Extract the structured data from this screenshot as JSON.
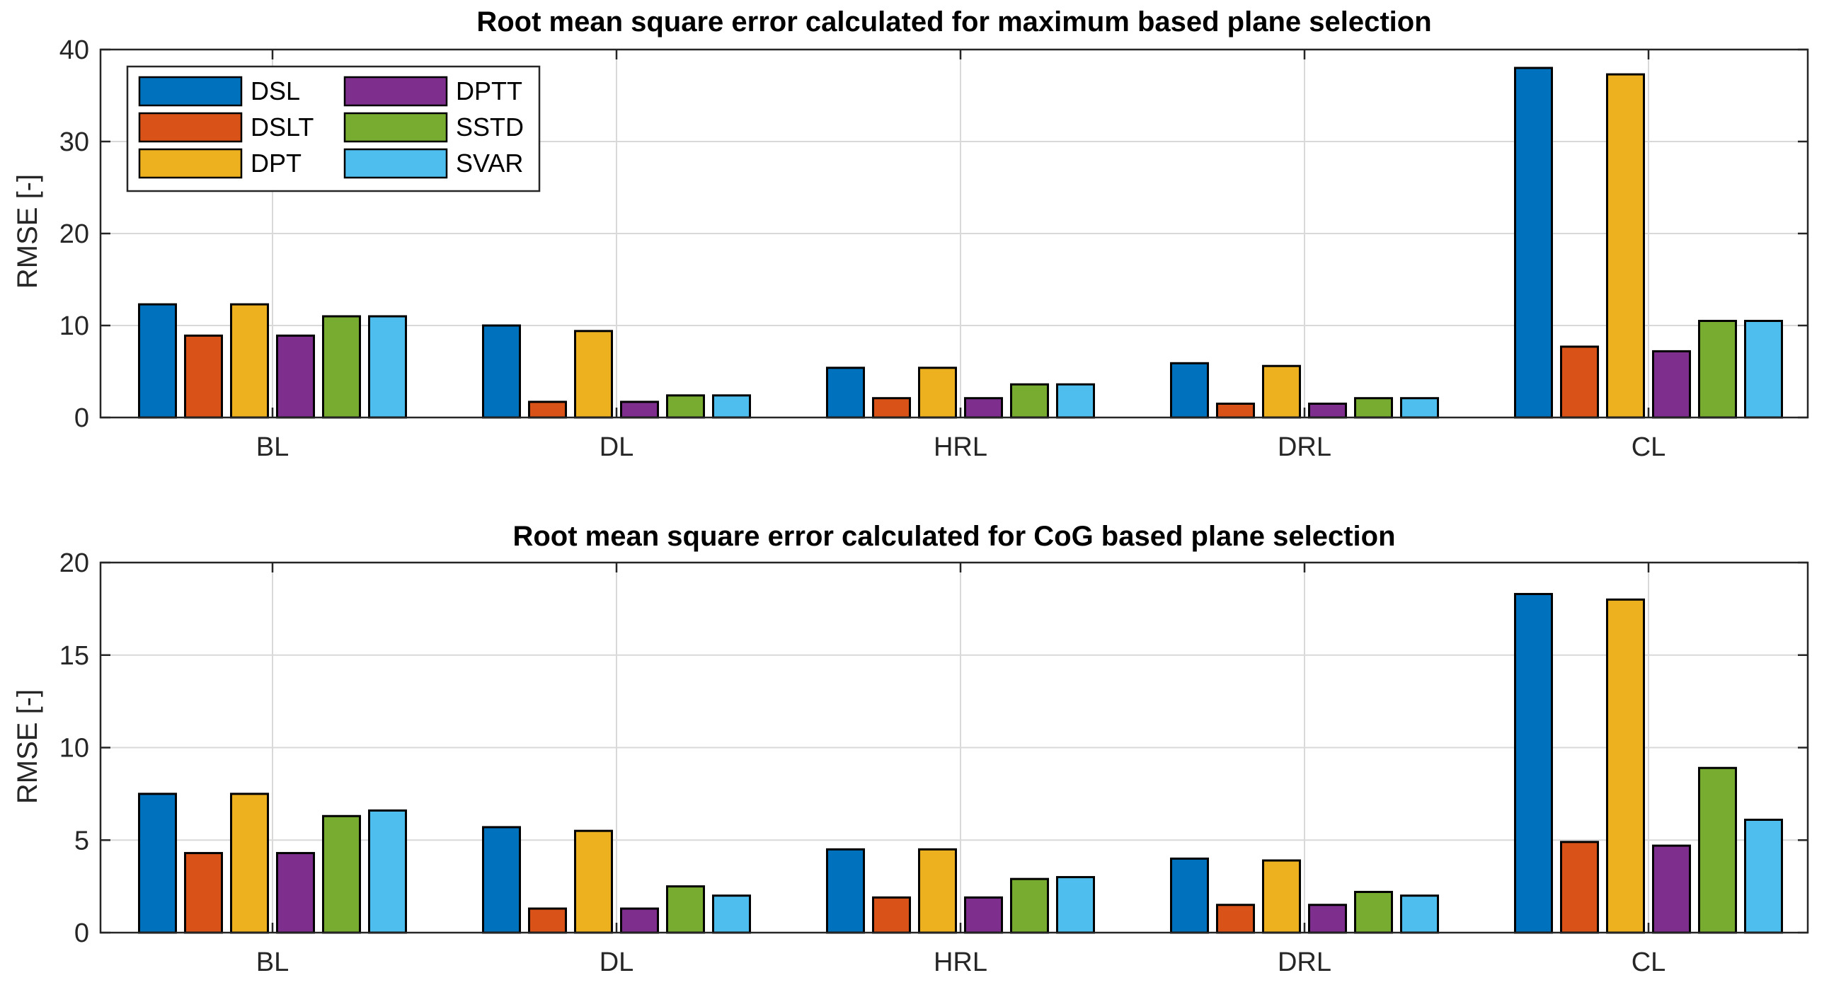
{
  "chart_data": [
    {
      "type": "bar",
      "title": "Root mean square error calculated for maximum based plane selection",
      "xlabel": "",
      "ylabel": "RMSE [-]",
      "ylim": [
        0,
        40
      ],
      "yticks": [
        0,
        10,
        20,
        30,
        40
      ],
      "categories": [
        "BL",
        "DL",
        "HRL",
        "DRL",
        "CL"
      ],
      "grid": true,
      "legend_position": "top-left",
      "series": [
        {
          "name": "DSL",
          "color": "#0072BD",
          "values": [
            12.3,
            10.0,
            5.4,
            5.9,
            38.0
          ]
        },
        {
          "name": "DSLT",
          "color": "#D95319",
          "values": [
            8.9,
            1.7,
            2.1,
            1.5,
            7.7
          ]
        },
        {
          "name": "DPT",
          "color": "#EDB120",
          "values": [
            12.3,
            9.4,
            5.4,
            5.6,
            37.3
          ]
        },
        {
          "name": "DPTT",
          "color": "#7E2F8E",
          "values": [
            8.9,
            1.7,
            2.1,
            1.5,
            7.2
          ]
        },
        {
          "name": "SSTD",
          "color": "#77AC30",
          "values": [
            11.0,
            2.4,
            3.6,
            2.1,
            10.5
          ]
        },
        {
          "name": "SVAR",
          "color": "#4DBEEE",
          "values": [
            11.0,
            2.4,
            3.6,
            2.1,
            10.5
          ]
        }
      ]
    },
    {
      "type": "bar",
      "title": "Root mean square error calculated for CoG based plane selection",
      "xlabel": "",
      "ylabel": "RMSE [-]",
      "ylim": [
        0,
        20
      ],
      "yticks": [
        0,
        5,
        10,
        15,
        20
      ],
      "categories": [
        "BL",
        "DL",
        "HRL",
        "DRL",
        "CL"
      ],
      "grid": true,
      "series": [
        {
          "name": "DSL",
          "color": "#0072BD",
          "values": [
            7.5,
            5.7,
            4.5,
            4.0,
            18.3
          ]
        },
        {
          "name": "DSLT",
          "color": "#D95319",
          "values": [
            4.3,
            1.3,
            1.9,
            1.5,
            4.9
          ]
        },
        {
          "name": "DPT",
          "color": "#EDB120",
          "values": [
            7.5,
            5.5,
            4.5,
            3.9,
            18.0
          ]
        },
        {
          "name": "DPTT",
          "color": "#7E2F8E",
          "values": [
            4.3,
            1.3,
            1.9,
            1.5,
            4.7
          ]
        },
        {
          "name": "SSTD",
          "color": "#77AC30",
          "values": [
            6.3,
            2.5,
            2.9,
            2.2,
            8.9
          ]
        },
        {
          "name": "SVAR",
          "color": "#4DBEEE",
          "values": [
            6.6,
            2.0,
            3.0,
            2.0,
            6.1
          ]
        }
      ]
    }
  ]
}
